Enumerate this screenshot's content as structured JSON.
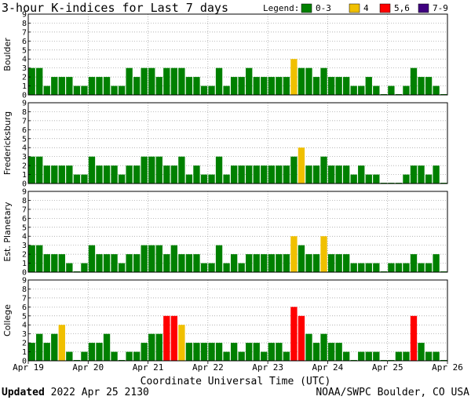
{
  "chart_data": {
    "type": "bar",
    "title": "3-hour K-indices for Last 7 days",
    "legend": {
      "label": "Legend:",
      "items": [
        {
          "label": "0-3",
          "color": "#008000"
        },
        {
          "label": "4",
          "color": "#f0c000"
        },
        {
          "label": "5,6",
          "color": "#ff0000"
        },
        {
          "label": "7-9",
          "color": "#400080"
        }
      ]
    },
    "ylim": [
      0,
      9
    ],
    "yticks": [
      "0",
      "1",
      "2",
      "3",
      "4",
      "5",
      "6",
      "7",
      "8",
      "9"
    ],
    "xlabel": "Coordinate Universal Time (UTC)",
    "xticks": [
      "Apr 19",
      "Apr 20",
      "Apr 21",
      "Apr 22",
      "Apr 23",
      "Apr 24",
      "Apr 25",
      "Apr 26"
    ],
    "series": [
      {
        "name": "Boulder",
        "values": [
          3,
          3,
          1,
          2,
          2,
          2,
          1,
          1,
          2,
          2,
          2,
          1,
          1,
          3,
          2,
          3,
          3,
          2,
          3,
          3,
          3,
          2,
          2,
          1,
          1,
          3,
          1,
          2,
          2,
          3,
          2,
          2,
          2,
          2,
          2,
          4,
          3,
          3,
          2,
          3,
          2,
          2,
          2,
          1,
          1,
          2,
          1,
          0,
          1,
          0,
          1,
          3,
          2,
          2,
          1,
          0
        ]
      },
      {
        "name": "Fredericksburg",
        "values": [
          3,
          3,
          2,
          2,
          2,
          2,
          1,
          1,
          3,
          2,
          2,
          2,
          1,
          2,
          2,
          3,
          3,
          3,
          2,
          2,
          3,
          1,
          2,
          1,
          1,
          3,
          1,
          2,
          2,
          2,
          2,
          2,
          2,
          2,
          2,
          3,
          4,
          2,
          2,
          3,
          2,
          2,
          2,
          1,
          2,
          1,
          1,
          0,
          0,
          0,
          1,
          2,
          2,
          1,
          2,
          0
        ]
      },
      {
        "name": "Est. Planetary",
        "values": [
          3,
          3,
          2,
          2,
          2,
          1,
          0,
          1,
          3,
          2,
          2,
          2,
          1,
          2,
          2,
          3,
          3,
          3,
          2,
          3,
          2,
          2,
          2,
          1,
          1,
          3,
          1,
          2,
          1,
          2,
          2,
          2,
          2,
          2,
          2,
          4,
          3,
          2,
          2,
          4,
          2,
          2,
          2,
          1,
          1,
          1,
          1,
          0,
          1,
          1,
          1,
          2,
          1,
          1,
          2,
          0
        ]
      },
      {
        "name": "College",
        "values": [
          2,
          3,
          2,
          3,
          4,
          1,
          0,
          1,
          2,
          2,
          3,
          1,
          0,
          1,
          1,
          2,
          3,
          3,
          5,
          5,
          4,
          2,
          2,
          2,
          2,
          2,
          1,
          2,
          1,
          2,
          2,
          1,
          2,
          2,
          1,
          6,
          5,
          3,
          2,
          3,
          2,
          2,
          1,
          0,
          1,
          1,
          1,
          0,
          0,
          1,
          1,
          5,
          2,
          1,
          1,
          0
        ]
      }
    ],
    "grid": true
  },
  "footer": {
    "updated_label": "Updated",
    "updated_value": "2022 Apr 25 2130",
    "source": "NOAA/SWPC Boulder, CO USA"
  }
}
